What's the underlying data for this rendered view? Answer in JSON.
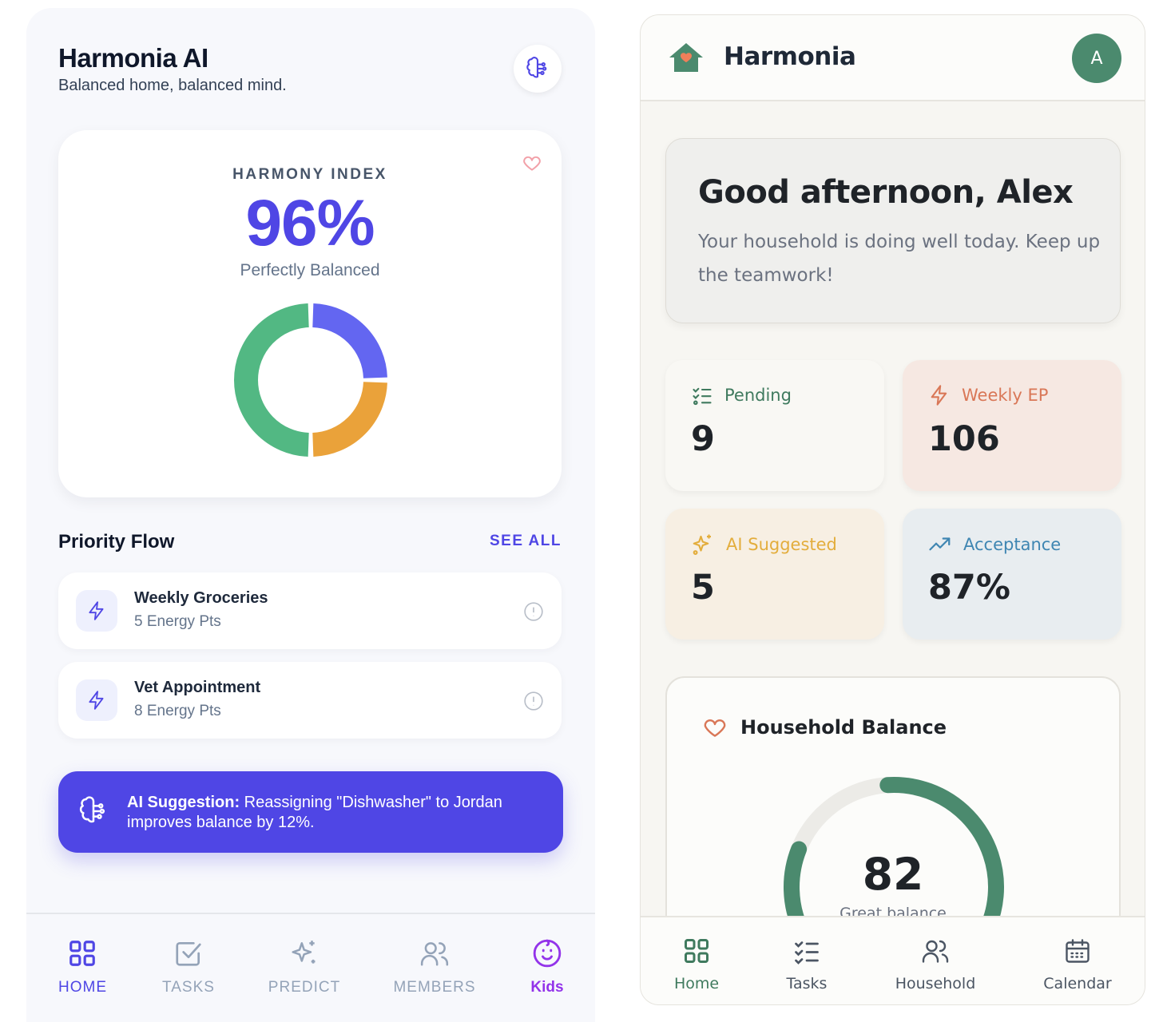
{
  "left_app": {
    "title": "Harmonia AI",
    "subtitle": "Balanced home, balanced mind.",
    "harmony": {
      "label": "HARMONY INDEX",
      "value": "96%",
      "state": "Perfectly Balanced",
      "segments": [
        {
          "name": "indigo",
          "value": 25,
          "color": "#6366f1"
        },
        {
          "name": "amber",
          "value": 25,
          "color": "#eaa23a"
        },
        {
          "name": "green",
          "value": 50,
          "color": "#52b883"
        }
      ]
    },
    "priority_flow": {
      "title": "Priority Flow",
      "see_all": "SEE ALL",
      "items": [
        {
          "name": "Weekly Groceries",
          "points": "5 Energy Pts"
        },
        {
          "name": "Vet Appointment",
          "points": "8 Energy Pts"
        }
      ]
    },
    "ai_suggestion": {
      "prefix": "AI Suggestion:",
      "text": " Reassigning \"Dishwasher\" to Jordan improves balance by 12%."
    },
    "nav": [
      {
        "label": "HOME",
        "icon": "grid-icon"
      },
      {
        "label": "TASKS",
        "icon": "checkbox-icon"
      },
      {
        "label": "PREDICT",
        "icon": "sparkles-icon"
      },
      {
        "label": "MEMBERS",
        "icon": "users-icon"
      },
      {
        "label": "Kids",
        "icon": "baby-face-icon"
      }
    ],
    "colors": {
      "accent": "#4f46e5",
      "kids": "#9333ea"
    }
  },
  "right_app": {
    "title": "Harmonia",
    "avatar_initial": "A",
    "greeting": {
      "title": "Good afternoon, Alex",
      "text": "Your household is doing well today. Keep up the teamwork!"
    },
    "stats": [
      {
        "label": "Pending",
        "value": "9",
        "icon": "checklist-icon"
      },
      {
        "label": "Weekly EP",
        "value": "106",
        "icon": "lightning-icon"
      },
      {
        "label": "AI Suggested",
        "value": "5",
        "icon": "sparkles-icon"
      },
      {
        "label": "Acceptance",
        "value": "87%",
        "icon": "trend-up-icon"
      }
    ],
    "balance": {
      "title": "Household Balance",
      "value": "82",
      "label": "Great balance",
      "fraction": 0.82
    },
    "nav": [
      {
        "label": "Home",
        "icon": "grid-icon"
      },
      {
        "label": "Tasks",
        "icon": "checklist-icon"
      },
      {
        "label": "Household",
        "icon": "users-icon"
      },
      {
        "label": "Calendar",
        "icon": "calendar-icon"
      }
    ],
    "colors": {
      "accent": "#4b8a6e"
    }
  }
}
